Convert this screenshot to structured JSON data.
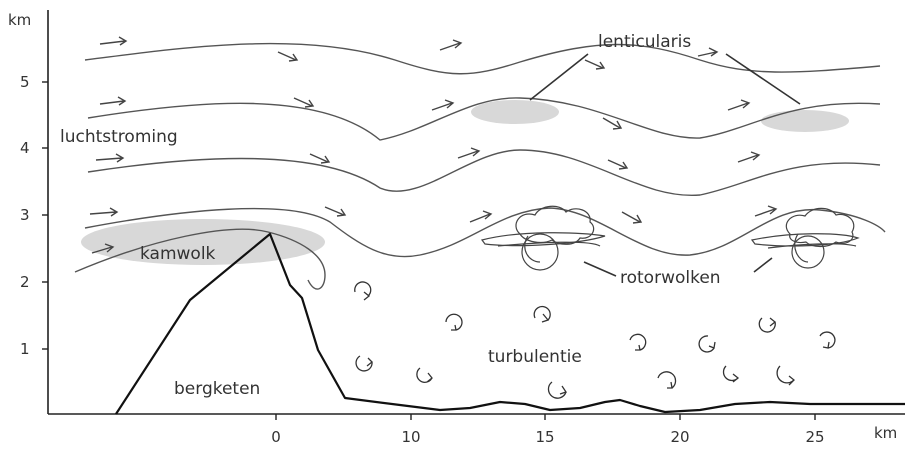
{
  "axes": {
    "y_unit": "km",
    "x_unit": "km",
    "y_ticks": [
      "1",
      "2",
      "3",
      "4",
      "5"
    ],
    "x_ticks": [
      "0",
      "10",
      "15",
      "20",
      "25"
    ]
  },
  "labels": {
    "lenticularis": "lenticularis",
    "luchtstroming": "luchtstroming",
    "kamwolk": "kamwolk",
    "rotorwolken": "rotorwolken",
    "turbulentie": "turbulentie",
    "bergketen": "bergketen"
  },
  "colors": {
    "cloud_fill": "#d8d8d8",
    "ground_line": "#111111",
    "flow_line": "#555555"
  }
}
